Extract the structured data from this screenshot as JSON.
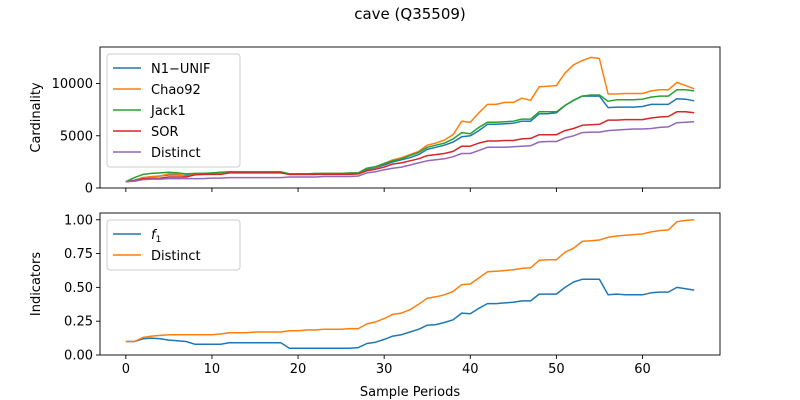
{
  "title": "cave (Q35509)",
  "chart_data": [
    {
      "type": "line",
      "ylabel": "Cardinality",
      "xlabel": "",
      "xlim": [
        -3,
        69
      ],
      "ylim": [
        0,
        13500
      ],
      "xticks": [
        0,
        10,
        20,
        30,
        40,
        50,
        60
      ],
      "xtick_labels_visible": false,
      "yticks": [
        0,
        5000,
        10000
      ],
      "ytick_labels": [
        "0",
        "5000",
        "10000"
      ],
      "grid": false,
      "legend_position": "top-left",
      "series": [
        {
          "name": "N1−UNIF",
          "color": "#1f77b4",
          "x": [
            0,
            1,
            2,
            3,
            4,
            5,
            6,
            7,
            8,
            9,
            10,
            11,
            12,
            13,
            14,
            15,
            16,
            17,
            18,
            19,
            20,
            21,
            22,
            23,
            24,
            25,
            26,
            27,
            28,
            29,
            30,
            31,
            32,
            33,
            34,
            35,
            36,
            37,
            38,
            39,
            40,
            41,
            42,
            43,
            44,
            45,
            46,
            47,
            48,
            49,
            50,
            51,
            52,
            53,
            54,
            55,
            56,
            57,
            58,
            59,
            60,
            61,
            62,
            63,
            64,
            65,
            66
          ],
          "y": [
            600,
            750,
            1000,
            1050,
            1150,
            1250,
            1250,
            1200,
            1300,
            1300,
            1350,
            1400,
            1500,
            1500,
            1500,
            1500,
            1500,
            1500,
            1500,
            1300,
            1300,
            1300,
            1300,
            1350,
            1350,
            1350,
            1350,
            1400,
            1800,
            1950,
            2200,
            2500,
            2700,
            2900,
            3200,
            3700,
            3900,
            4100,
            4400,
            4900,
            5000,
            5500,
            6100,
            6100,
            6150,
            6200,
            6400,
            6400,
            7100,
            7100,
            7200,
            7900,
            8400,
            8800,
            8800,
            8800,
            7700,
            7750,
            7750,
            7750,
            7800,
            8000,
            8000,
            8000,
            8550,
            8500,
            8350
          ]
        },
        {
          "name": "Chao92",
          "color": "#ff7f0e",
          "x": [
            0,
            1,
            2,
            3,
            4,
            5,
            6,
            7,
            8,
            9,
            10,
            11,
            12,
            13,
            14,
            15,
            16,
            17,
            18,
            19,
            20,
            21,
            22,
            23,
            24,
            25,
            26,
            27,
            28,
            29,
            30,
            31,
            32,
            33,
            34,
            35,
            36,
            37,
            38,
            39,
            40,
            41,
            42,
            43,
            44,
            45,
            46,
            47,
            48,
            49,
            50,
            51,
            52,
            53,
            54,
            55,
            56,
            57,
            58,
            59,
            60,
            61,
            62,
            63,
            64,
            65,
            66
          ],
          "y": [
            600,
            700,
            1000,
            1100,
            1150,
            1350,
            1350,
            1100,
            1350,
            1400,
            1400,
            1450,
            1550,
            1550,
            1550,
            1550,
            1550,
            1550,
            1550,
            1350,
            1350,
            1350,
            1350,
            1400,
            1400,
            1400,
            1400,
            1450,
            1900,
            2000,
            2350,
            2700,
            2900,
            3200,
            3500,
            4100,
            4300,
            4600,
            5100,
            6400,
            6300,
            7200,
            8000,
            8000,
            8200,
            8200,
            8600,
            8400,
            9700,
            9750,
            9800,
            11000,
            11800,
            12200,
            12500,
            12400,
            9000,
            9000,
            9050,
            9050,
            9050,
            9300,
            9400,
            9400,
            10100,
            9800,
            9500
          ]
        },
        {
          "name": "Jack1",
          "color": "#2ca02c",
          "x": [
            0,
            1,
            2,
            3,
            4,
            5,
            6,
            7,
            8,
            9,
            10,
            11,
            12,
            13,
            14,
            15,
            16,
            17,
            18,
            19,
            20,
            21,
            22,
            23,
            24,
            25,
            26,
            27,
            28,
            29,
            30,
            31,
            32,
            33,
            34,
            35,
            36,
            37,
            38,
            39,
            40,
            41,
            42,
            43,
            44,
            45,
            46,
            47,
            48,
            49,
            50,
            51,
            52,
            53,
            54,
            55,
            56,
            57,
            58,
            59,
            60,
            61,
            62,
            63,
            64,
            65,
            66
          ],
          "y": [
            600,
            1000,
            1300,
            1400,
            1450,
            1500,
            1450,
            1350,
            1400,
            1400,
            1450,
            1500,
            1550,
            1550,
            1550,
            1550,
            1550,
            1550,
            1550,
            1350,
            1350,
            1350,
            1400,
            1400,
            1400,
            1400,
            1450,
            1450,
            1900,
            2050,
            2350,
            2600,
            2800,
            3100,
            3400,
            3900,
            4100,
            4300,
            4700,
            5300,
            5200,
            5800,
            6300,
            6300,
            6350,
            6400,
            6600,
            6600,
            7300,
            7300,
            7300,
            7900,
            8400,
            8800,
            8900,
            8900,
            8300,
            8450,
            8450,
            8450,
            8500,
            8700,
            8800,
            8800,
            9400,
            9400,
            9300
          ]
        },
        {
          "name": "SOR",
          "color": "#d62728",
          "x": [
            0,
            1,
            2,
            3,
            4,
            5,
            6,
            7,
            8,
            9,
            10,
            11,
            12,
            13,
            14,
            15,
            16,
            17,
            18,
            19,
            20,
            21,
            22,
            23,
            24,
            25,
            26,
            27,
            28,
            29,
            30,
            31,
            32,
            33,
            34,
            35,
            36,
            37,
            38,
            39,
            40,
            41,
            42,
            43,
            44,
            45,
            46,
            47,
            48,
            49,
            50,
            51,
            52,
            53,
            54,
            55,
            56,
            57,
            58,
            59,
            60,
            61,
            62,
            63,
            64,
            65,
            66
          ],
          "y": [
            600,
            700,
            900,
            900,
            950,
            1050,
            1050,
            1050,
            1250,
            1300,
            1300,
            1300,
            1450,
            1450,
            1450,
            1450,
            1450,
            1450,
            1450,
            1300,
            1300,
            1300,
            1300,
            1300,
            1300,
            1300,
            1300,
            1350,
            1650,
            1800,
            2000,
            2300,
            2400,
            2600,
            2800,
            3100,
            3200,
            3300,
            3500,
            4000,
            4000,
            4300,
            4500,
            4500,
            4550,
            4550,
            4700,
            4750,
            5100,
            5100,
            5100,
            5500,
            5700,
            6000,
            6050,
            6100,
            6500,
            6500,
            6550,
            6550,
            6550,
            6700,
            6800,
            6850,
            7300,
            7300,
            7200
          ]
        },
        {
          "name": "Distinct",
          "color": "#9467bd",
          "x": [
            0,
            1,
            2,
            3,
            4,
            5,
            6,
            7,
            8,
            9,
            10,
            11,
            12,
            13,
            14,
            15,
            16,
            17,
            18,
            19,
            20,
            21,
            22,
            23,
            24,
            25,
            26,
            27,
            28,
            29,
            30,
            31,
            32,
            33,
            34,
            35,
            36,
            37,
            38,
            39,
            40,
            41,
            42,
            43,
            44,
            45,
            46,
            47,
            48,
            49,
            50,
            51,
            52,
            53,
            54,
            55,
            56,
            57,
            58,
            59,
            60,
            61,
            62,
            63,
            64,
            65,
            66
          ],
          "y": [
            600,
            650,
            800,
            850,
            850,
            900,
            900,
            900,
            900,
            900,
            950,
            950,
            1000,
            1000,
            1000,
            1000,
            1000,
            1000,
            1000,
            1050,
            1050,
            1050,
            1050,
            1100,
            1100,
            1100,
            1100,
            1150,
            1450,
            1550,
            1750,
            1900,
            2000,
            2200,
            2400,
            2600,
            2700,
            2800,
            3000,
            3300,
            3300,
            3600,
            3900,
            3900,
            3900,
            3950,
            4000,
            4050,
            4400,
            4450,
            4450,
            4800,
            5000,
            5300,
            5350,
            5350,
            5500,
            5550,
            5600,
            5650,
            5650,
            5700,
            5800,
            5850,
            6250,
            6300,
            6350
          ]
        }
      ]
    },
    {
      "type": "line",
      "ylabel": "Indicators",
      "xlabel": "Sample Periods",
      "xlim": [
        -3,
        69
      ],
      "ylim": [
        0,
        1.05
      ],
      "xticks": [
        0,
        10,
        20,
        30,
        40,
        50,
        60
      ],
      "xtick_labels": [
        "0",
        "10",
        "20",
        "30",
        "40",
        "50",
        "60"
      ],
      "yticks": [
        0,
        0.25,
        0.5,
        0.75,
        1.0
      ],
      "ytick_labels": [
        "0.00",
        "0.25",
        "0.50",
        "0.75",
        "1.00"
      ],
      "grid": false,
      "legend_position": "top-left",
      "series": [
        {
          "name": "f",
          "name_subscript": "1",
          "color": "#1f77b4",
          "x": [
            0,
            1,
            2,
            3,
            4,
            5,
            6,
            7,
            8,
            9,
            10,
            11,
            12,
            13,
            14,
            15,
            16,
            17,
            18,
            19,
            20,
            21,
            22,
            23,
            24,
            25,
            26,
            27,
            28,
            29,
            30,
            31,
            32,
            33,
            34,
            35,
            36,
            37,
            38,
            39,
            40,
            41,
            42,
            43,
            44,
            45,
            46,
            47,
            48,
            49,
            50,
            51,
            52,
            53,
            54,
            55,
            56,
            57,
            58,
            59,
            60,
            61,
            62,
            63,
            64,
            65,
            66
          ],
          "y": [
            0.1,
            0.1,
            0.12,
            0.125,
            0.12,
            0.11,
            0.105,
            0.1,
            0.08,
            0.08,
            0.08,
            0.08,
            0.09,
            0.09,
            0.09,
            0.09,
            0.09,
            0.09,
            0.09,
            0.05,
            0.05,
            0.05,
            0.05,
            0.05,
            0.05,
            0.05,
            0.05,
            0.055,
            0.085,
            0.095,
            0.115,
            0.14,
            0.15,
            0.17,
            0.19,
            0.22,
            0.225,
            0.24,
            0.26,
            0.31,
            0.305,
            0.345,
            0.38,
            0.38,
            0.385,
            0.39,
            0.4,
            0.4,
            0.45,
            0.45,
            0.45,
            0.5,
            0.54,
            0.56,
            0.56,
            0.56,
            0.445,
            0.45,
            0.445,
            0.445,
            0.445,
            0.46,
            0.465,
            0.465,
            0.5,
            0.49,
            0.48
          ]
        },
        {
          "name": "Distinct",
          "color": "#ff7f0e",
          "x": [
            0,
            1,
            2,
            3,
            4,
            5,
            6,
            7,
            8,
            9,
            10,
            11,
            12,
            13,
            14,
            15,
            16,
            17,
            18,
            19,
            20,
            21,
            22,
            23,
            24,
            25,
            26,
            27,
            28,
            29,
            30,
            31,
            32,
            33,
            34,
            35,
            36,
            37,
            38,
            39,
            40,
            41,
            42,
            43,
            44,
            45,
            46,
            47,
            48,
            49,
            50,
            51,
            52,
            53,
            54,
            55,
            56,
            57,
            58,
            59,
            60,
            61,
            62,
            63,
            64,
            65,
            66
          ],
          "y": [
            0.1,
            0.1,
            0.13,
            0.14,
            0.145,
            0.15,
            0.15,
            0.15,
            0.15,
            0.15,
            0.15,
            0.155,
            0.165,
            0.165,
            0.165,
            0.17,
            0.17,
            0.17,
            0.17,
            0.18,
            0.18,
            0.185,
            0.185,
            0.19,
            0.19,
            0.19,
            0.195,
            0.195,
            0.23,
            0.245,
            0.27,
            0.3,
            0.31,
            0.335,
            0.375,
            0.42,
            0.43,
            0.445,
            0.47,
            0.52,
            0.525,
            0.57,
            0.615,
            0.62,
            0.625,
            0.63,
            0.64,
            0.645,
            0.7,
            0.705,
            0.705,
            0.76,
            0.79,
            0.84,
            0.845,
            0.85,
            0.87,
            0.88,
            0.885,
            0.89,
            0.895,
            0.91,
            0.92,
            0.925,
            0.985,
            0.995,
            1.0
          ]
        }
      ]
    }
  ]
}
